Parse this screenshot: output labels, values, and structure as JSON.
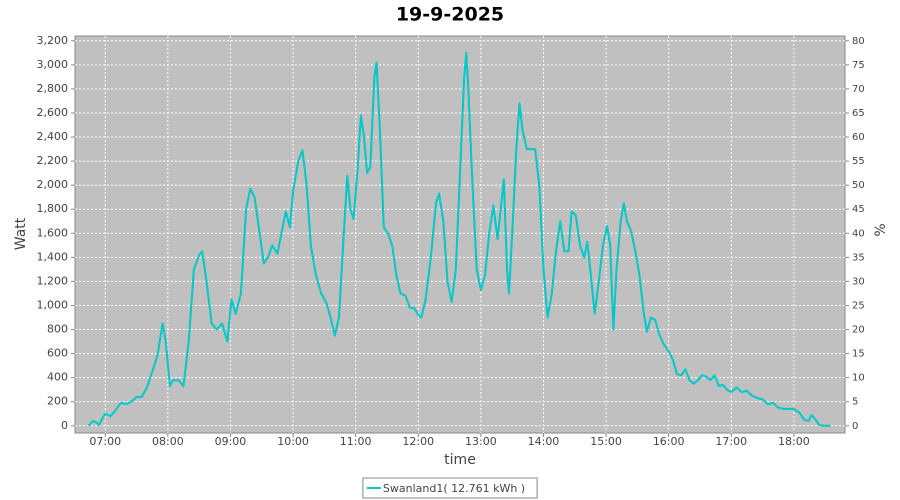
{
  "chart_data": {
    "type": "line",
    "title": "19-9-2025",
    "x_label": "time",
    "y_label": "Watt",
    "y2_label": "%",
    "xlim": [
      "06:31",
      "18:49"
    ],
    "xticks": [
      "07:00",
      "08:00",
      "09:00",
      "10:00",
      "11:00",
      "12:00",
      "13:00",
      "14:00",
      "15:00",
      "16:00",
      "17:00",
      "18:00"
    ],
    "ylim": [
      -60,
      3240
    ],
    "yticks": [
      0,
      200,
      400,
      600,
      800,
      {
        "value": 1000,
        "label": "1,000"
      },
      {
        "value": 1200,
        "label": "1,200"
      },
      {
        "value": 1400,
        "label": "1,400"
      },
      {
        "value": 1600,
        "label": "1,600"
      },
      {
        "value": 1800,
        "label": "1,800"
      },
      {
        "value": 2000,
        "label": "2,000"
      },
      {
        "value": 2200,
        "label": "2,200"
      },
      {
        "value": 2400,
        "label": "2,400"
      },
      {
        "value": 2600,
        "label": "2,600"
      },
      {
        "value": 2800,
        "label": "2,800"
      },
      {
        "value": 3000,
        "label": "3,000"
      },
      {
        "value": 3200,
        "label": "3,200"
      }
    ],
    "y2lim": [
      -1.5,
      81
    ],
    "y2ticks": [
      0,
      5,
      10,
      15,
      20,
      25,
      30,
      35,
      40,
      45,
      50,
      55,
      60,
      65,
      70,
      75,
      80
    ],
    "grid": true,
    "plot_background": "#c0c0c0",
    "legend": "bottom",
    "x": [
      "06:44",
      "06:48",
      "06:51",
      "06:54",
      "06:57",
      "07:00",
      "07:05",
      "07:10",
      "07:15",
      "07:20",
      "07:25",
      "07:30",
      "07:35",
      "07:40",
      "07:45",
      "07:50",
      "07:55",
      "07:58",
      "08:02",
      "08:05",
      "08:10",
      "08:15",
      "08:20",
      "08:25",
      "08:30",
      "08:33",
      "08:37",
      "08:42",
      "08:47",
      "08:52",
      "08:57",
      "09:01",
      "09:05",
      "09:10",
      "09:15",
      "09:19",
      "09:23",
      "09:28",
      "09:32",
      "09:36",
      "09:40",
      "09:45",
      "09:50",
      "09:53",
      "09:57",
      "10:00",
      "10:05",
      "10:09",
      "10:13",
      "10:17",
      "10:22",
      "10:27",
      "10:32",
      "10:36",
      "10:40",
      "10:44",
      "10:48",
      "10:52",
      "10:55",
      "10:58",
      "11:02",
      "11:05",
      "11:08",
      "11:11",
      "11:14",
      "11:18",
      "11:20",
      "11:23",
      "11:27",
      "11:31",
      "11:35",
      "11:39",
      "11:43",
      "11:48",
      "11:52",
      "11:56",
      "12:00",
      "12:03",
      "12:07",
      "12:12",
      "12:17",
      "12:20",
      "12:24",
      "12:28",
      "12:32",
      "12:36",
      "12:40",
      "12:44",
      "12:46",
      "12:48",
      "12:52",
      "12:56",
      "13:00",
      "13:04",
      "13:08",
      "13:12",
      "13:16",
      "13:19",
      "13:22",
      "13:25",
      "13:27",
      "13:30",
      "13:34",
      "13:37",
      "13:40",
      "13:44",
      "13:48",
      "13:52",
      "13:56",
      "14:00",
      "14:04",
      "14:08",
      "14:12",
      "14:16",
      "14:20",
      "14:24",
      "14:27",
      "14:31",
      "14:35",
      "14:39",
      "14:42",
      "14:46",
      "14:49",
      "14:53",
      "14:57",
      "15:01",
      "15:04",
      "15:07",
      "15:10",
      "15:14",
      "15:17",
      "15:20",
      "15:24",
      "15:28",
      "15:32",
      "15:36",
      "15:39",
      "15:43",
      "15:47",
      "15:51",
      "15:55",
      "16:00",
      "16:04",
      "16:08",
      "16:12",
      "16:16",
      "16:20",
      "16:24",
      "16:28",
      "16:32",
      "16:36",
      "16:40",
      "16:44",
      "16:48",
      "16:52",
      "16:56",
      "17:00",
      "17:05",
      "17:10",
      "17:15",
      "17:20",
      "17:25",
      "17:30",
      "17:35",
      "17:40",
      "17:45",
      "17:50",
      "17:55",
      "18:00",
      "18:05",
      "18:10",
      "18:14",
      "18:17",
      "18:20",
      "18:24",
      "18:28",
      "18:35"
    ],
    "series": [
      {
        "name": "Swanland1( 12.761 kWh )",
        "color": "#00c8c8",
        "values": [
          0,
          40,
          30,
          5,
          60,
          100,
          80,
          130,
          190,
          180,
          200,
          240,
          240,
          320,
          450,
          580,
          850,
          700,
          330,
          380,
          380,
          330,
          700,
          1300,
          1420,
          1450,
          1200,
          850,
          800,
          850,
          700,
          1050,
          930,
          1100,
          1800,
          1970,
          1900,
          1600,
          1350,
          1400,
          1500,
          1430,
          1650,
          1780,
          1650,
          1950,
          2200,
          2290,
          2000,
          1500,
          1250,
          1100,
          1020,
          900,
          750,
          900,
          1500,
          2080,
          1800,
          1720,
          2150,
          2580,
          2400,
          2100,
          2150,
          2900,
          3020,
          2500,
          1650,
          1600,
          1500,
          1250,
          1100,
          1080,
          980,
          980,
          920,
          900,
          1050,
          1400,
          1850,
          1930,
          1700,
          1200,
          1030,
          1300,
          2100,
          2900,
          3100,
          2800,
          2000,
          1300,
          1130,
          1250,
          1600,
          1830,
          1550,
          1800,
          2050,
          1300,
          1100,
          1600,
          2300,
          2680,
          2450,
          2300,
          2300,
          2300,
          2000,
          1300,
          900,
          1100,
          1450,
          1700,
          1450,
          1450,
          1780,
          1750,
          1500,
          1400,
          1530,
          1200,
          930,
          1200,
          1500,
          1660,
          1500,
          800,
          1300,
          1700,
          1850,
          1700,
          1620,
          1450,
          1250,
          950,
          780,
          900,
          880,
          760,
          680,
          620,
          550,
          430,
          420,
          470,
          380,
          350,
          380,
          420,
          410,
          380,
          420,
          330,
          340,
          300,
          280,
          320,
          280,
          290,
          250,
          230,
          220,
          180,
          190,
          150,
          140,
          140,
          140,
          110,
          50,
          40,
          90,
          60,
          10,
          0,
          0
        ]
      }
    ]
  }
}
